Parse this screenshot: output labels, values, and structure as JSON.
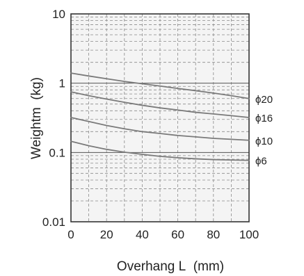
{
  "chart_data": {
    "type": "line",
    "title": "",
    "xlabel": "Overhang L  (mm)",
    "ylabel": "Weightm  (kg)",
    "x_scale": "linear",
    "y_scale": "log",
    "xlim": [
      0,
      100
    ],
    "ylim": [
      0.01,
      10
    ],
    "x_ticks": [
      0,
      20,
      40,
      60,
      80,
      100
    ],
    "x_tick_labels": [
      "0",
      "20",
      "40",
      "60",
      "80",
      "100"
    ],
    "y_ticks": [
      0.01,
      0.1,
      1,
      10
    ],
    "y_tick_labels": [
      "0.01",
      "0.1",
      "1",
      "10"
    ],
    "grid": true,
    "grid_style": "dashed",
    "legend": "none",
    "line_color": "#7a7a7a",
    "plot_background": "#f4f4f4",
    "x": [
      0,
      10,
      20,
      30,
      40,
      50,
      60,
      70,
      80,
      90,
      100
    ],
    "series": [
      {
        "name": "ϕ20",
        "values": [
          1.4,
          1.27,
          1.16,
          1.06,
          0.98,
          0.91,
          0.84,
          0.78,
          0.72,
          0.66,
          0.6
        ]
      },
      {
        "name": "ϕ16",
        "values": [
          0.75,
          0.66,
          0.59,
          0.53,
          0.48,
          0.44,
          0.41,
          0.38,
          0.36,
          0.34,
          0.32
        ]
      },
      {
        "name": "ϕ10",
        "values": [
          0.32,
          0.28,
          0.245,
          0.22,
          0.2,
          0.188,
          0.176,
          0.168,
          0.16,
          0.155,
          0.15
        ]
      },
      {
        "name": "ϕ6",
        "values": [
          0.145,
          0.125,
          0.111,
          0.101,
          0.094,
          0.088,
          0.084,
          0.081,
          0.079,
          0.078,
          0.077
        ]
      }
    ]
  }
}
